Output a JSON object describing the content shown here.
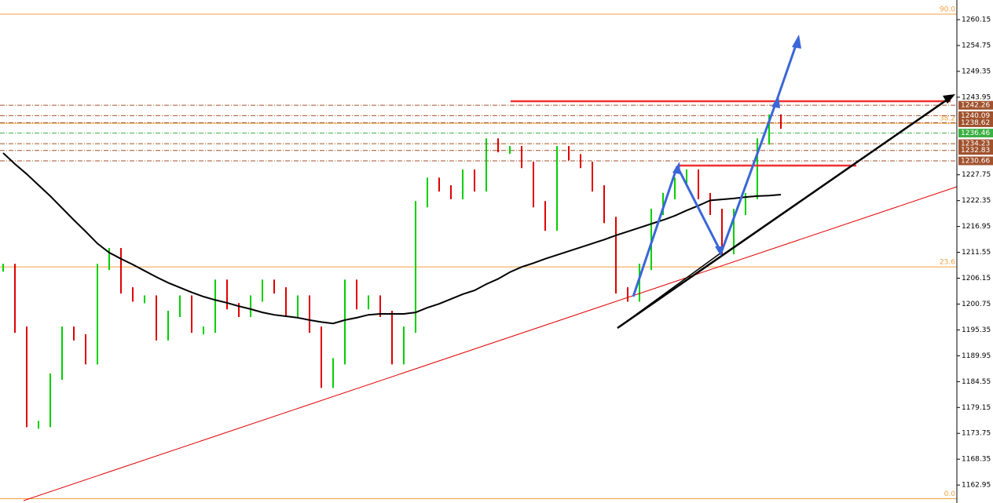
{
  "chart_data": {
    "type": "price-bars",
    "ylim": [
      1159.2,
      1264.25
    ],
    "yticks": [
      1260.15,
      1254.75,
      1249.35,
      1243.95,
      1227.75,
      1222.35,
      1216.95,
      1211.55,
      1206.15,
      1200.75,
      1195.35,
      1189.95,
      1184.55,
      1179.15,
      1173.75,
      1168.35,
      1162.95
    ],
    "bars": {
      "up_color": "#00d000",
      "down_color": "#e00000",
      "values": [
        1208.5,
        1195.4,
        1175.7,
        1175.7,
        1185.6,
        1195.4,
        1193.8,
        1188.8,
        1208.5,
        1211.8,
        1203.6,
        1201.9,
        1201.9,
        1193.8,
        1198.7,
        1201.9,
        1195.4,
        1195.4,
        1205.2,
        1200.3,
        1198.7,
        1201.9,
        1205.2,
        1203.6,
        1198.7,
        1201.9,
        1195.4,
        1183.9,
        1188.8,
        1205.2,
        1200.3,
        1201.9,
        1198.7,
        1188.8,
        1195.4,
        1221.6,
        1226.5,
        1224.9,
        1223.3,
        1228.2,
        1224.9,
        1234.7,
        1233.1,
        1233.1,
        1229.8,
        1221.6,
        1216.7,
        1233.1,
        1231.4,
        1229.8,
        1224.9,
        1218.3,
        1203.6,
        1201.9,
        1208.5,
        1220.0,
        1223.3,
        1226.5,
        1228.2,
        1223.3,
        1220.0,
        1211.8,
        1220.0,
        1223.3,
        1234.7,
        1239.7,
        1238.0
      ]
    },
    "ma_line": {
      "color": "#000000",
      "values": [
        1232.3,
        1230.0,
        1227.9,
        1225.6,
        1223.3,
        1220.8,
        1218.3,
        1215.9,
        1213.4,
        1211.5,
        1210.2,
        1209.0,
        1207.7,
        1206.4,
        1205.2,
        1204.2,
        1203.2,
        1202.3,
        1201.6,
        1201.0,
        1200.3,
        1199.7,
        1199.0,
        1198.5,
        1198.2,
        1197.9,
        1197.4,
        1197.0,
        1196.7,
        1197.4,
        1197.9,
        1198.5,
        1198.7,
        1198.7,
        1198.7,
        1199.0,
        1200.0,
        1200.8,
        1201.8,
        1202.8,
        1203.6,
        1204.9,
        1206.0,
        1207.4,
        1208.5,
        1209.3,
        1210.2,
        1211.0,
        1211.8,
        1212.6,
        1213.4,
        1214.2,
        1215.1,
        1215.9,
        1216.7,
        1217.5,
        1218.3,
        1219.2,
        1220.3,
        1221.3,
        1222.4,
        1222.6,
        1222.8,
        1223.1,
        1223.3,
        1223.4,
        1223.6
      ]
    },
    "fib_levels": [
      {
        "label": "90.0",
        "price": 1261.3
      },
      {
        "label": "38.2",
        "price": 1238.5
      },
      {
        "label": "23.6",
        "price": 1208.5
      },
      {
        "label": "0.0",
        "price": 1160.1
      }
    ],
    "fib_color": "#f0a040",
    "price_labels": [
      {
        "value": 1242.26,
        "color": "#a0522d"
      },
      {
        "value": 1240.09,
        "color": "#a0522d"
      },
      {
        "value": 1238.62,
        "color": "#a0522d"
      },
      {
        "value": 1236.46,
        "color": "#3cb043"
      },
      {
        "value": 1234.23,
        "color": "#a0522d"
      },
      {
        "value": 1232.83,
        "color": "#a0522d"
      },
      {
        "value": 1230.66,
        "color": "#a0522d"
      }
    ]
  }
}
